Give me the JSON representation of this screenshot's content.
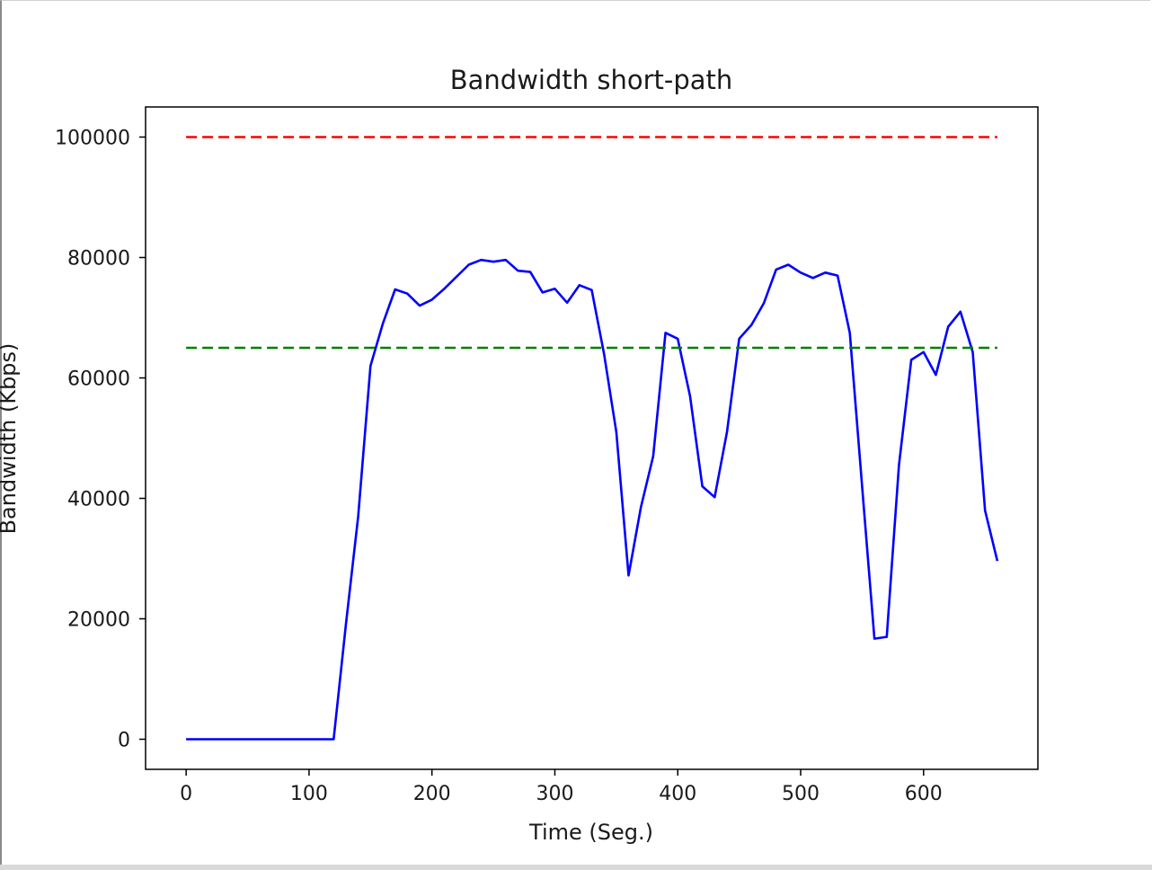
{
  "chart_data": {
    "type": "line",
    "title": "Bandwidth short-path",
    "xlabel": "Time (Seg.)",
    "ylabel": "Bandwidth (Kbps)",
    "xlim": [
      -33,
      693
    ],
    "ylim": [
      -5000,
      105000
    ],
    "x_ticks": [
      0,
      100,
      200,
      300,
      400,
      500,
      600
    ],
    "y_ticks": [
      0,
      20000,
      40000,
      60000,
      80000,
      100000
    ],
    "grid": false,
    "legend": "none",
    "series": [
      {
        "style": "solid",
        "color": "#0000ff",
        "x": [
          0,
          10,
          20,
          30,
          40,
          50,
          60,
          70,
          80,
          90,
          100,
          110,
          120,
          130,
          140,
          150,
          160,
          170,
          180,
          190,
          200,
          210,
          220,
          230,
          240,
          250,
          260,
          270,
          280,
          290,
          300,
          310,
          320,
          330,
          340,
          350,
          360,
          370,
          380,
          390,
          400,
          410,
          420,
          430,
          440,
          450,
          460,
          470,
          480,
          490,
          500,
          510,
          520,
          530,
          540,
          550,
          560,
          570,
          580,
          590,
          600,
          610,
          620,
          630,
          640,
          650,
          660
        ],
        "y": [
          0,
          0,
          0,
          0,
          0,
          0,
          0,
          0,
          0,
          0,
          0,
          0,
          0,
          19000,
          37000,
          62000,
          69000,
          74700,
          74000,
          72000,
          73000,
          74800,
          76800,
          78800,
          79600,
          79300,
          79600,
          77800,
          77600,
          74200,
          74800,
          72500,
          75400,
          74600,
          64000,
          51000,
          27200,
          38500,
          47000,
          67500,
          66500,
          57000,
          42000,
          40200,
          51000,
          66500,
          68800,
          72400,
          78000,
          78800,
          77500,
          76600,
          77500,
          77000,
          67500,
          42000,
          16700,
          17000,
          45500,
          63000,
          64300,
          60500,
          68500,
          71000,
          64300,
          38000,
          29600
        ]
      },
      {
        "style": "dashed",
        "color": "#ff0000",
        "x": [
          0,
          660
        ],
        "y": [
          100000,
          100000
        ]
      },
      {
        "style": "dashed",
        "color": "#008000",
        "x": [
          0,
          660
        ],
        "y": [
          65000,
          65000
        ]
      }
    ]
  }
}
